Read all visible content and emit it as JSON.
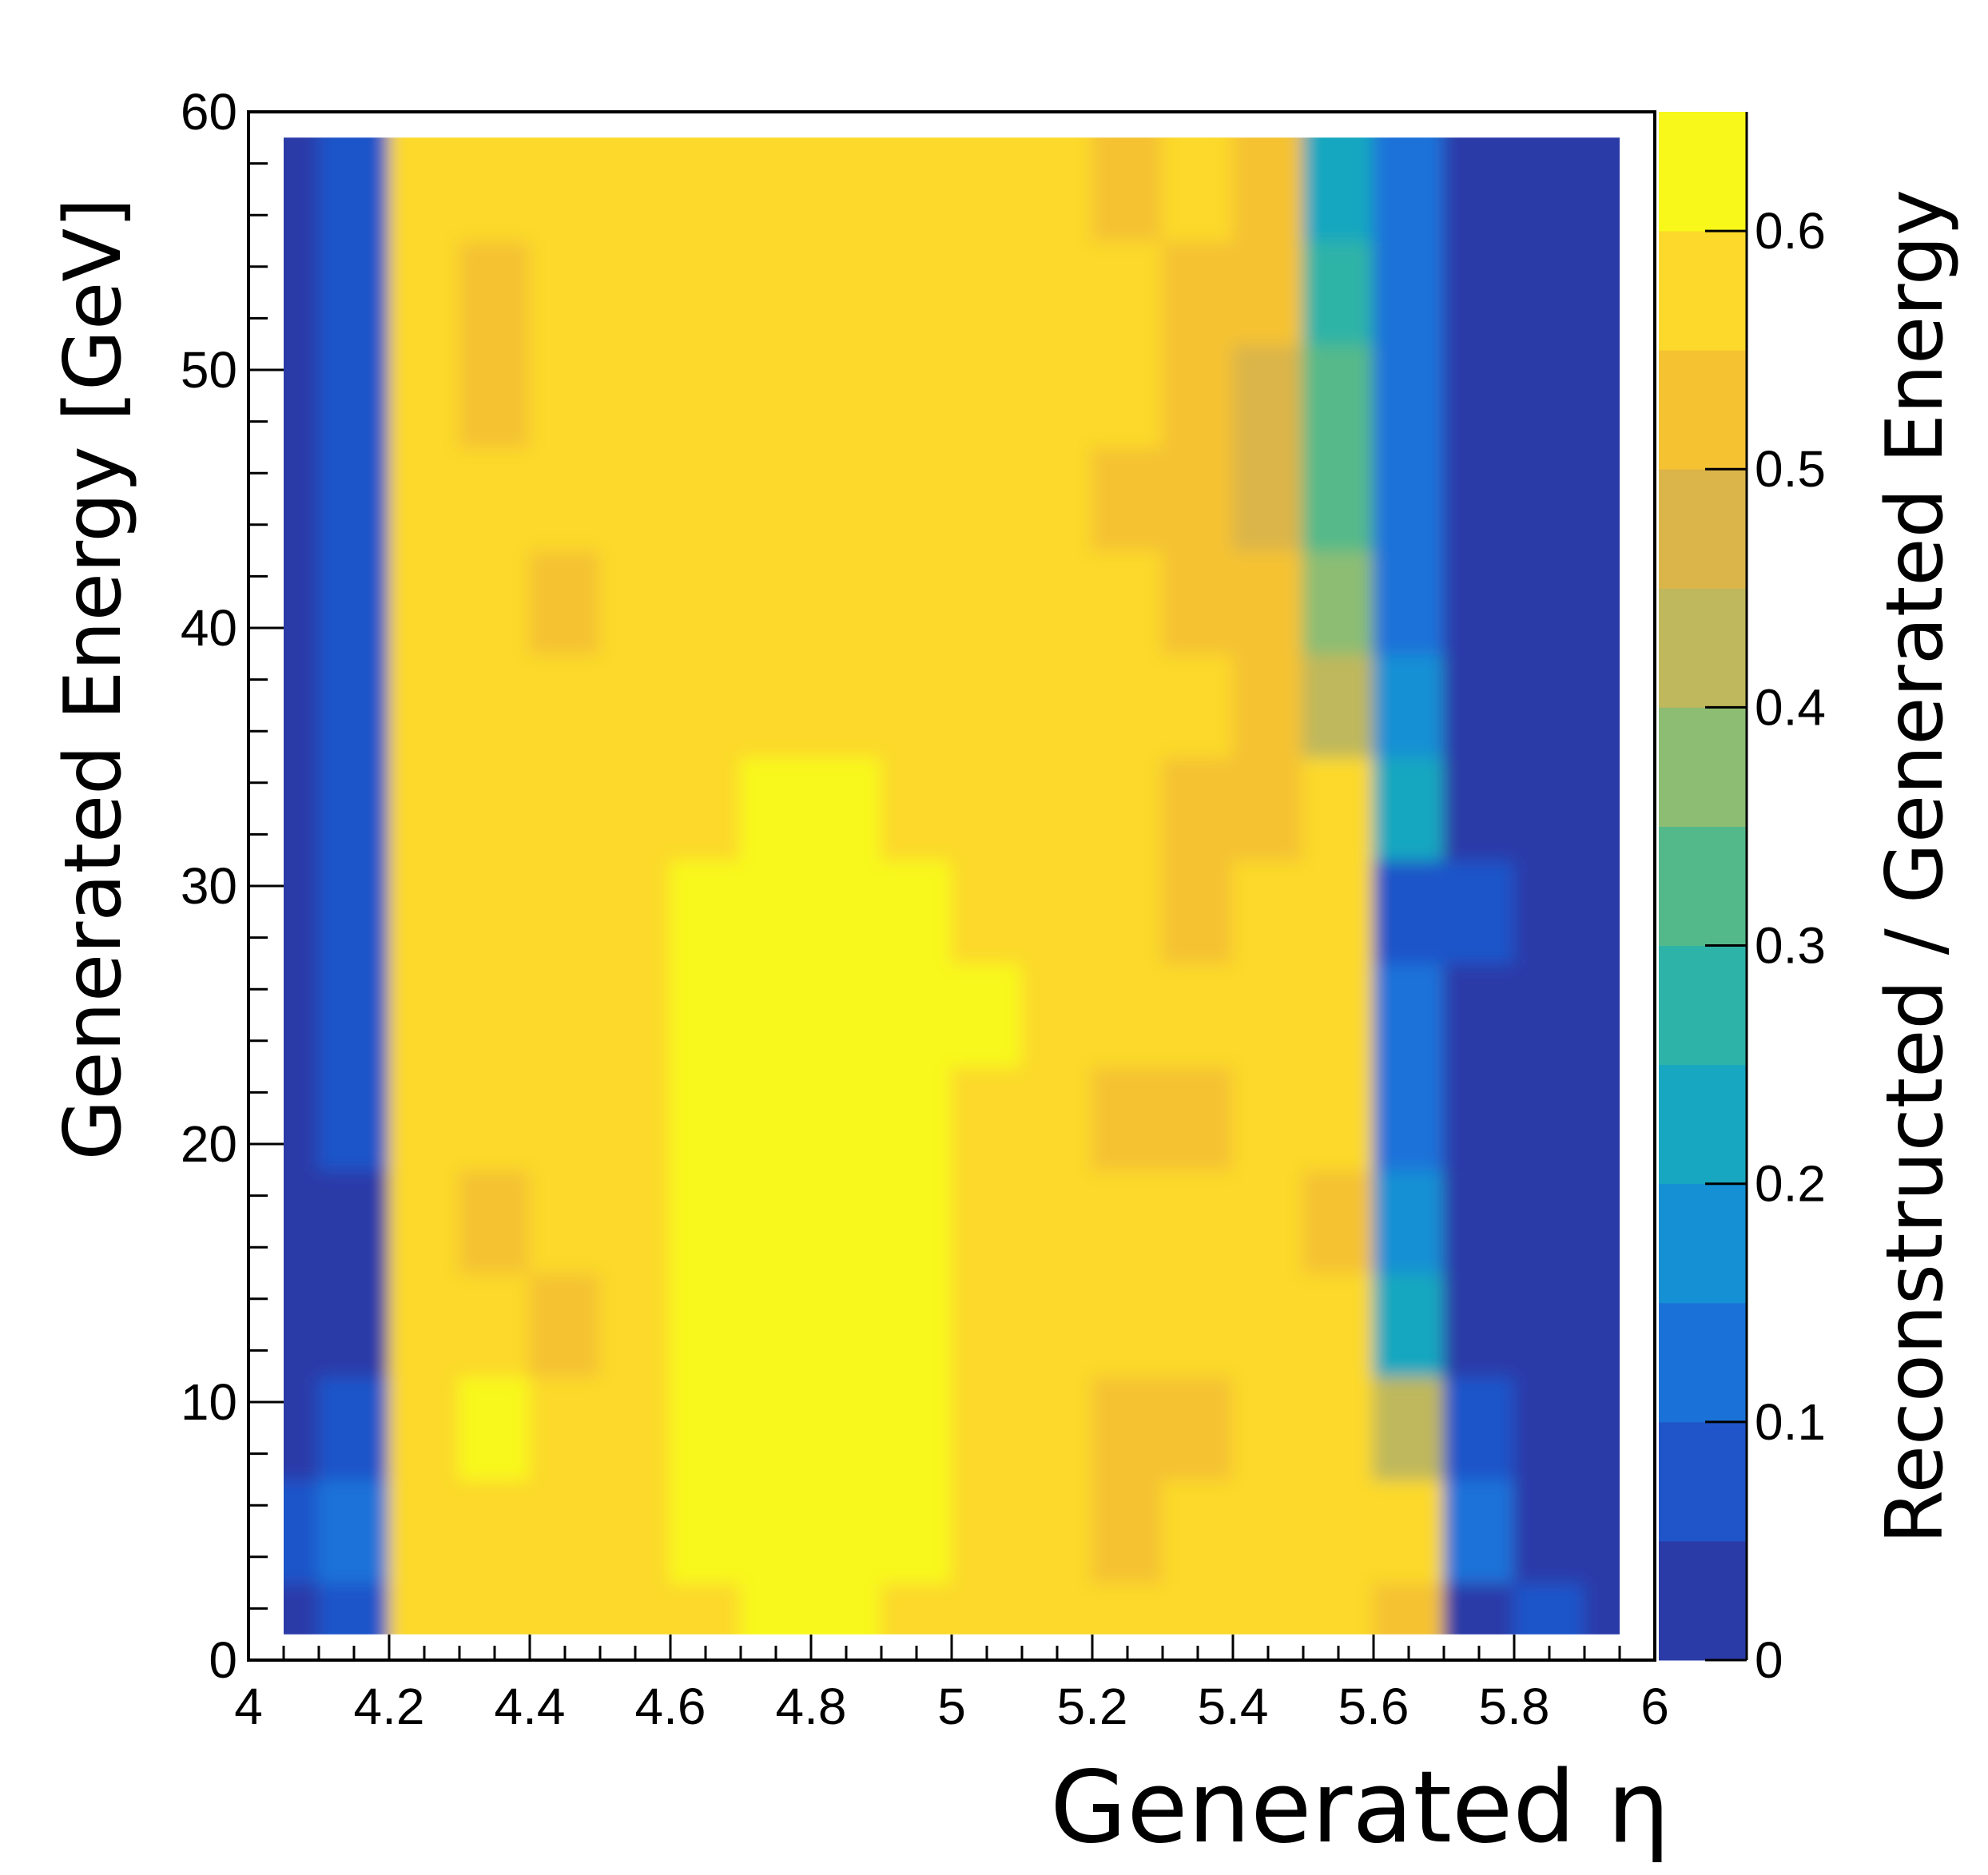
{
  "chart_data": {
    "type": "heatmap",
    "xlabel": "Generated η",
    "ylabel": "Generated Energy [GeV]",
    "zlabel": "Reconstructed / Generated Energy",
    "xlim": [
      4,
      6
    ],
    "ylim": [
      0,
      60
    ],
    "zlim": [
      0,
      0.65
    ],
    "x_ticks": [
      4,
      4.2,
      4.4,
      4.6,
      4.8,
      5,
      5.2,
      5.4,
      5.6,
      5.8,
      6
    ],
    "x_tick_labels": [
      "4",
      "4.2",
      "4.4",
      "4.6",
      "4.8",
      "5",
      "5.2",
      "5.4",
      "5.6",
      "5.8",
      "6"
    ],
    "y_ticks": [
      0,
      10,
      20,
      30,
      40,
      50,
      60
    ],
    "y_tick_labels": [
      "0",
      "10",
      "20",
      "30",
      "40",
      "50",
      "60"
    ],
    "z_ticks": [
      0,
      0.1,
      0.2,
      0.3,
      0.4,
      0.5,
      0.6
    ],
    "z_tick_labels": [
      "0",
      "0.1",
      "0.2",
      "0.3",
      "0.4",
      "0.5",
      "0.6"
    ],
    "colormap": [
      "#2a3ba8",
      "#1f55c9",
      "#1a72d9",
      "#1590d4",
      "#18a7c0",
      "#2db3a7",
      "#54b98a",
      "#8cbd73",
      "#bfb85c",
      "#dbb54a",
      "#f5c232",
      "#fcd92a",
      "#f8f81a"
    ],
    "data_region": {
      "x": [
        4.05,
        5.95
      ],
      "y": [
        1,
        59
      ]
    },
    "eta_bins": [
      4.05,
      4.15,
      4.25,
      4.35,
      4.45,
      4.55,
      4.65,
      4.75,
      4.85,
      4.95,
      5.05,
      5.15,
      5.25,
      5.35,
      5.45,
      5.55,
      5.65,
      5.75,
      5.85,
      5.95
    ],
    "energy_bins": [
      1,
      5,
      9,
      13,
      17,
      21,
      25,
      29,
      33,
      37,
      41,
      45,
      49,
      53,
      57,
      59
    ],
    "values": [
      [
        0.02,
        0.05,
        0.56,
        0.58,
        0.57,
        0.58,
        0.59,
        0.6,
        0.6,
        0.59,
        0.58,
        0.57,
        0.55,
        0.56,
        0.57,
        0.58,
        0.5,
        0.03,
        0.06,
        0.02
      ],
      [
        0.05,
        0.12,
        0.55,
        0.57,
        0.58,
        0.59,
        0.6,
        0.61,
        0.61,
        0.6,
        0.58,
        0.55,
        0.54,
        0.56,
        0.58,
        0.59,
        0.56,
        0.1,
        0.02,
        0.02
      ],
      [
        0.02,
        0.06,
        0.57,
        0.6,
        0.58,
        0.59,
        0.6,
        0.62,
        0.62,
        0.6,
        0.57,
        0.56,
        0.53,
        0.5,
        0.56,
        0.58,
        0.42,
        0.05,
        0.02,
        0.02
      ],
      [
        0.02,
        0.04,
        0.56,
        0.57,
        0.54,
        0.58,
        0.61,
        0.62,
        0.62,
        0.6,
        0.58,
        0.56,
        0.55,
        0.56,
        0.57,
        0.55,
        0.2,
        0.04,
        0.02,
        0.02
      ],
      [
        0.02,
        0.04,
        0.55,
        0.53,
        0.56,
        0.57,
        0.6,
        0.62,
        0.62,
        0.61,
        0.59,
        0.57,
        0.56,
        0.55,
        0.57,
        0.5,
        0.15,
        0.03,
        0.02,
        0.02
      ],
      [
        0.02,
        0.05,
        0.55,
        0.57,
        0.56,
        0.58,
        0.6,
        0.62,
        0.62,
        0.61,
        0.59,
        0.56,
        0.54,
        0.52,
        0.55,
        0.56,
        0.1,
        0.02,
        0.02,
        0.02
      ],
      [
        0.02,
        0.05,
        0.56,
        0.56,
        0.57,
        0.58,
        0.61,
        0.62,
        0.63,
        0.61,
        0.6,
        0.58,
        0.56,
        0.55,
        0.58,
        0.55,
        0.12,
        0.02,
        0.02,
        0.02
      ],
      [
        0.02,
        0.05,
        0.58,
        0.58,
        0.56,
        0.57,
        0.6,
        0.62,
        0.62,
        0.6,
        0.58,
        0.56,
        0.55,
        0.52,
        0.55,
        0.56,
        0.08,
        0.05,
        0.02,
        0.02
      ],
      [
        0.02,
        0.05,
        0.57,
        0.59,
        0.57,
        0.56,
        0.58,
        0.6,
        0.6,
        0.58,
        0.57,
        0.56,
        0.56,
        0.54,
        0.53,
        0.57,
        0.22,
        0.03,
        0.02,
        0.02
      ],
      [
        0.02,
        0.05,
        0.56,
        0.57,
        0.57,
        0.56,
        0.58,
        0.59,
        0.59,
        0.58,
        0.57,
        0.56,
        0.57,
        0.56,
        0.54,
        0.4,
        0.18,
        0.03,
        0.02,
        0.02
      ],
      [
        0.02,
        0.05,
        0.56,
        0.55,
        0.54,
        0.56,
        0.58,
        0.59,
        0.59,
        0.58,
        0.57,
        0.55,
        0.55,
        0.54,
        0.5,
        0.38,
        0.12,
        0.02,
        0.02,
        0.02
      ],
      [
        0.02,
        0.05,
        0.55,
        0.55,
        0.56,
        0.56,
        0.58,
        0.59,
        0.58,
        0.57,
        0.56,
        0.55,
        0.53,
        0.51,
        0.47,
        0.34,
        0.1,
        0.02,
        0.02,
        0.02
      ],
      [
        0.02,
        0.05,
        0.55,
        0.54,
        0.55,
        0.55,
        0.57,
        0.58,
        0.58,
        0.57,
        0.56,
        0.55,
        0.55,
        0.53,
        0.49,
        0.33,
        0.12,
        0.02,
        0.02,
        0.02
      ],
      [
        0.02,
        0.05,
        0.55,
        0.53,
        0.55,
        0.55,
        0.57,
        0.58,
        0.58,
        0.57,
        0.56,
        0.55,
        0.55,
        0.54,
        0.52,
        0.27,
        0.14,
        0.04,
        0.02,
        0.02
      ],
      [
        0.02,
        0.06,
        0.56,
        0.56,
        0.56,
        0.56,
        0.57,
        0.58,
        0.58,
        0.57,
        0.56,
        0.55,
        0.54,
        0.55,
        0.5,
        0.24,
        0.14,
        0.04,
        0.02,
        0.02
      ],
      [
        0.02,
        0.06,
        0.56,
        0.56,
        0.56,
        0.56,
        0.57,
        0.58,
        0.58,
        0.57,
        0.56,
        0.55,
        0.54,
        0.55,
        0.5,
        0.24,
        0.14,
        0.04,
        0.02,
        0.02
      ]
    ],
    "grid": false,
    "legend": "colorbar-right"
  }
}
